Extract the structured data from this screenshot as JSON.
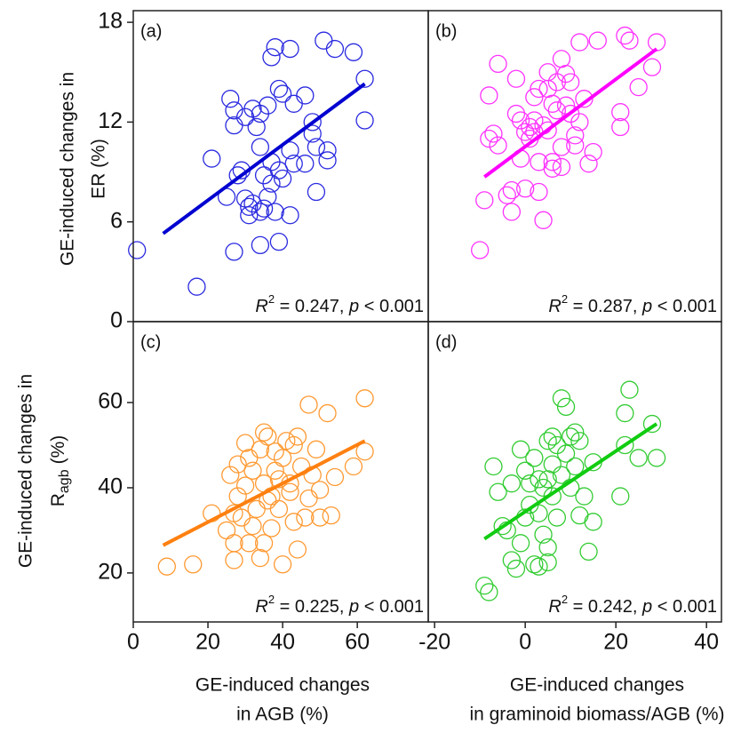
{
  "chart_data": [
    {
      "type": "scatter",
      "panel_label": "(a)",
      "color": "#2a2ae0",
      "fit_color": "#0000d0",
      "x": [
        1,
        17,
        21,
        25,
        26,
        27,
        27,
        27,
        28,
        29,
        30,
        30,
        31,
        31,
        32,
        32,
        33,
        34,
        34,
        34,
        34,
        35,
        35,
        36,
        36,
        37,
        37,
        37,
        38,
        38,
        39,
        39,
        39,
        40,
        40,
        42,
        42,
        42,
        43,
        43,
        46,
        46,
        48,
        48,
        49,
        49,
        51,
        52,
        52,
        54,
        59,
        62,
        62
      ],
      "values": [
        4.3,
        2.1,
        9.8,
        7.5,
        13.4,
        12.7,
        11.8,
        4.2,
        8.8,
        9.1,
        12.3,
        7.4,
        6.4,
        6.9,
        12.8,
        7.1,
        11.7,
        12.5,
        10.5,
        6.6,
        4.6,
        6.8,
        8.8,
        13.0,
        7.5,
        15.9,
        8.3,
        9.6,
        16.5,
        6.6,
        14.0,
        4.8,
        9.1,
        13.7,
        8.6,
        16.4,
        10.3,
        6.4,
        9.5,
        13.1,
        9.5,
        13.6,
        12.0,
        11.3,
        7.8,
        10.5,
        16.9,
        10.3,
        9.7,
        16.4,
        16.2,
        12.1,
        14.6
      ],
      "fit_x": [
        8,
        62
      ],
      "fit_values": [
        5.3,
        14.3
      ],
      "xlim": [
        0,
        79
      ],
      "ylim": [
        0,
        18.7
      ],
      "yticks": [
        0,
        6,
        12,
        18
      ],
      "annotation": [
        "R",
        "2",
        " = 0.247, ",
        "p",
        " < 0.001"
      ],
      "ylabel": [
        "GE-induced changes in",
        "ER (%)"
      ]
    },
    {
      "type": "scatter",
      "panel_label": "(b)",
      "color": "#ff33ff",
      "fit_color": "#ff00ff",
      "x": [
        -10,
        -9,
        -8,
        -8,
        -7,
        -6,
        -6,
        -4,
        -3,
        -3,
        -2,
        -2,
        -1,
        -1,
        0,
        0,
        1,
        1,
        2,
        2,
        2,
        3,
        3,
        3,
        4,
        4,
        5,
        5,
        5,
        6,
        6,
        6,
        7,
        7,
        8,
        8,
        8,
        9,
        9,
        10,
        10,
        11,
        11,
        12,
        12,
        13,
        14,
        15,
        16,
        21,
        21,
        22,
        23,
        25,
        28,
        29
      ],
      "values": [
        4.3,
        7.3,
        13.6,
        11.0,
        11.3,
        10.6,
        15.5,
        7.6,
        7.9,
        6.6,
        12.5,
        14.6,
        12.1,
        9.8,
        11.4,
        8.0,
        11.7,
        11.0,
        13.5,
        11.4,
        12.1,
        14.0,
        9.6,
        7.8,
        11.8,
        6.1,
        11.5,
        15.0,
        14.0,
        13.1,
        9.2,
        9.6,
        14.4,
        12.7,
        10.5,
        9.3,
        15.8,
        13.0,
        14.9,
        12.5,
        14.4,
        11.2,
        10.6,
        16.8,
        12.0,
        13.4,
        9.5,
        10.2,
        16.9,
        11.7,
        12.6,
        17.2,
        16.9,
        14.1,
        15.3,
        16.8
      ],
      "fit_x": [
        -9,
        29
      ],
      "fit_values": [
        8.7,
        16.4
      ],
      "xlim": [
        -21.4,
        43.3
      ],
      "ylim": [
        0,
        18.7
      ],
      "annotation": [
        "R",
        "2",
        " = 0.287, ",
        "p",
        " < 0.001"
      ]
    },
    {
      "type": "scatter",
      "panel_label": "(c)",
      "color": "#ff9a33",
      "fit_color": "#ff8010",
      "x": [
        9,
        16,
        21,
        25,
        26,
        27,
        27,
        27,
        28,
        28,
        29,
        30,
        30,
        31,
        31,
        32,
        32,
        33,
        34,
        34,
        35,
        35,
        35,
        36,
        36,
        37,
        37,
        38,
        38,
        39,
        39,
        40,
        40,
        41,
        42,
        42,
        43,
        43,
        44,
        44,
        45,
        46,
        47,
        47,
        48,
        49,
        50,
        50,
        52,
        53,
        54,
        59,
        62,
        62
      ],
      "values": [
        21.5,
        22,
        34,
        30,
        43,
        34,
        27,
        23,
        38,
        45.5,
        33,
        40.5,
        50.5,
        47,
        27,
        44,
        31,
        35,
        49,
        23.5,
        53,
        41,
        27,
        52,
        37,
        38,
        30.5,
        48.5,
        44,
        42,
        35,
        47,
        22,
        51,
        39,
        41,
        50,
        32,
        52,
        25.5,
        45,
        33,
        59.5,
        37.5,
        43,
        49,
        39.5,
        33,
        57.5,
        33.5,
        42.5,
        45,
        61,
        48.5
      ],
      "fit_x": [
        8,
        62
      ],
      "fit_values": [
        26.5,
        51
      ],
      "xlim": [
        0,
        79
      ],
      "ylim": [
        8.5,
        79
      ],
      "xticks": [
        0,
        20,
        40,
        60
      ],
      "yticks": [
        20,
        40,
        60
      ],
      "annotation": [
        "R",
        "2",
        " = 0.225, ",
        "p",
        " < 0.001"
      ],
      "ylabel": [
        "GE-induced changes in",
        "R",
        "agb",
        "(%)"
      ],
      "xlabel": [
        "GE-induced changes",
        "in AGB (%)"
      ]
    },
    {
      "type": "scatter",
      "panel_label": "(d)",
      "color": "#33cc33",
      "fit_color": "#11cc11",
      "x": [
        -9,
        -8,
        -7,
        -6,
        -5,
        -4,
        -3,
        -3,
        -2,
        -1,
        -1,
        0,
        0,
        1,
        1,
        2,
        2,
        3,
        3,
        3,
        4,
        4,
        5,
        5,
        5,
        5,
        6,
        6,
        6,
        7,
        7,
        8,
        8,
        9,
        9,
        10,
        10,
        11,
        11,
        12,
        12,
        13,
        14,
        15,
        15,
        21,
        22,
        22,
        23,
        25,
        28,
        29
      ],
      "values": [
        17,
        15.5,
        45,
        39,
        31,
        30,
        41,
        23,
        21,
        49,
        27,
        44,
        33,
        41,
        36,
        47,
        22,
        42,
        34,
        21.5,
        40,
        29,
        51,
        42,
        26,
        22.5,
        52,
        45.5,
        38,
        50,
        33,
        61,
        43,
        59,
        48,
        52,
        40,
        53,
        45,
        51,
        33.5,
        38,
        25,
        46,
        32,
        38,
        50,
        57.5,
        63,
        47,
        55,
        47
      ],
      "fit_x": [
        -9,
        29
      ],
      "fit_values": [
        28,
        55
      ],
      "xlim": [
        -21.4,
        43.3
      ],
      "ylim": [
        8.5,
        79
      ],
      "xticks": [
        -20,
        0,
        20,
        40
      ],
      "annotation": [
        "R",
        "2",
        " = 0.242, ",
        "p",
        " < 0.001"
      ],
      "xlabel": [
        "GE-induced changes",
        "in graminoid biomass/AGB (%)"
      ]
    }
  ]
}
